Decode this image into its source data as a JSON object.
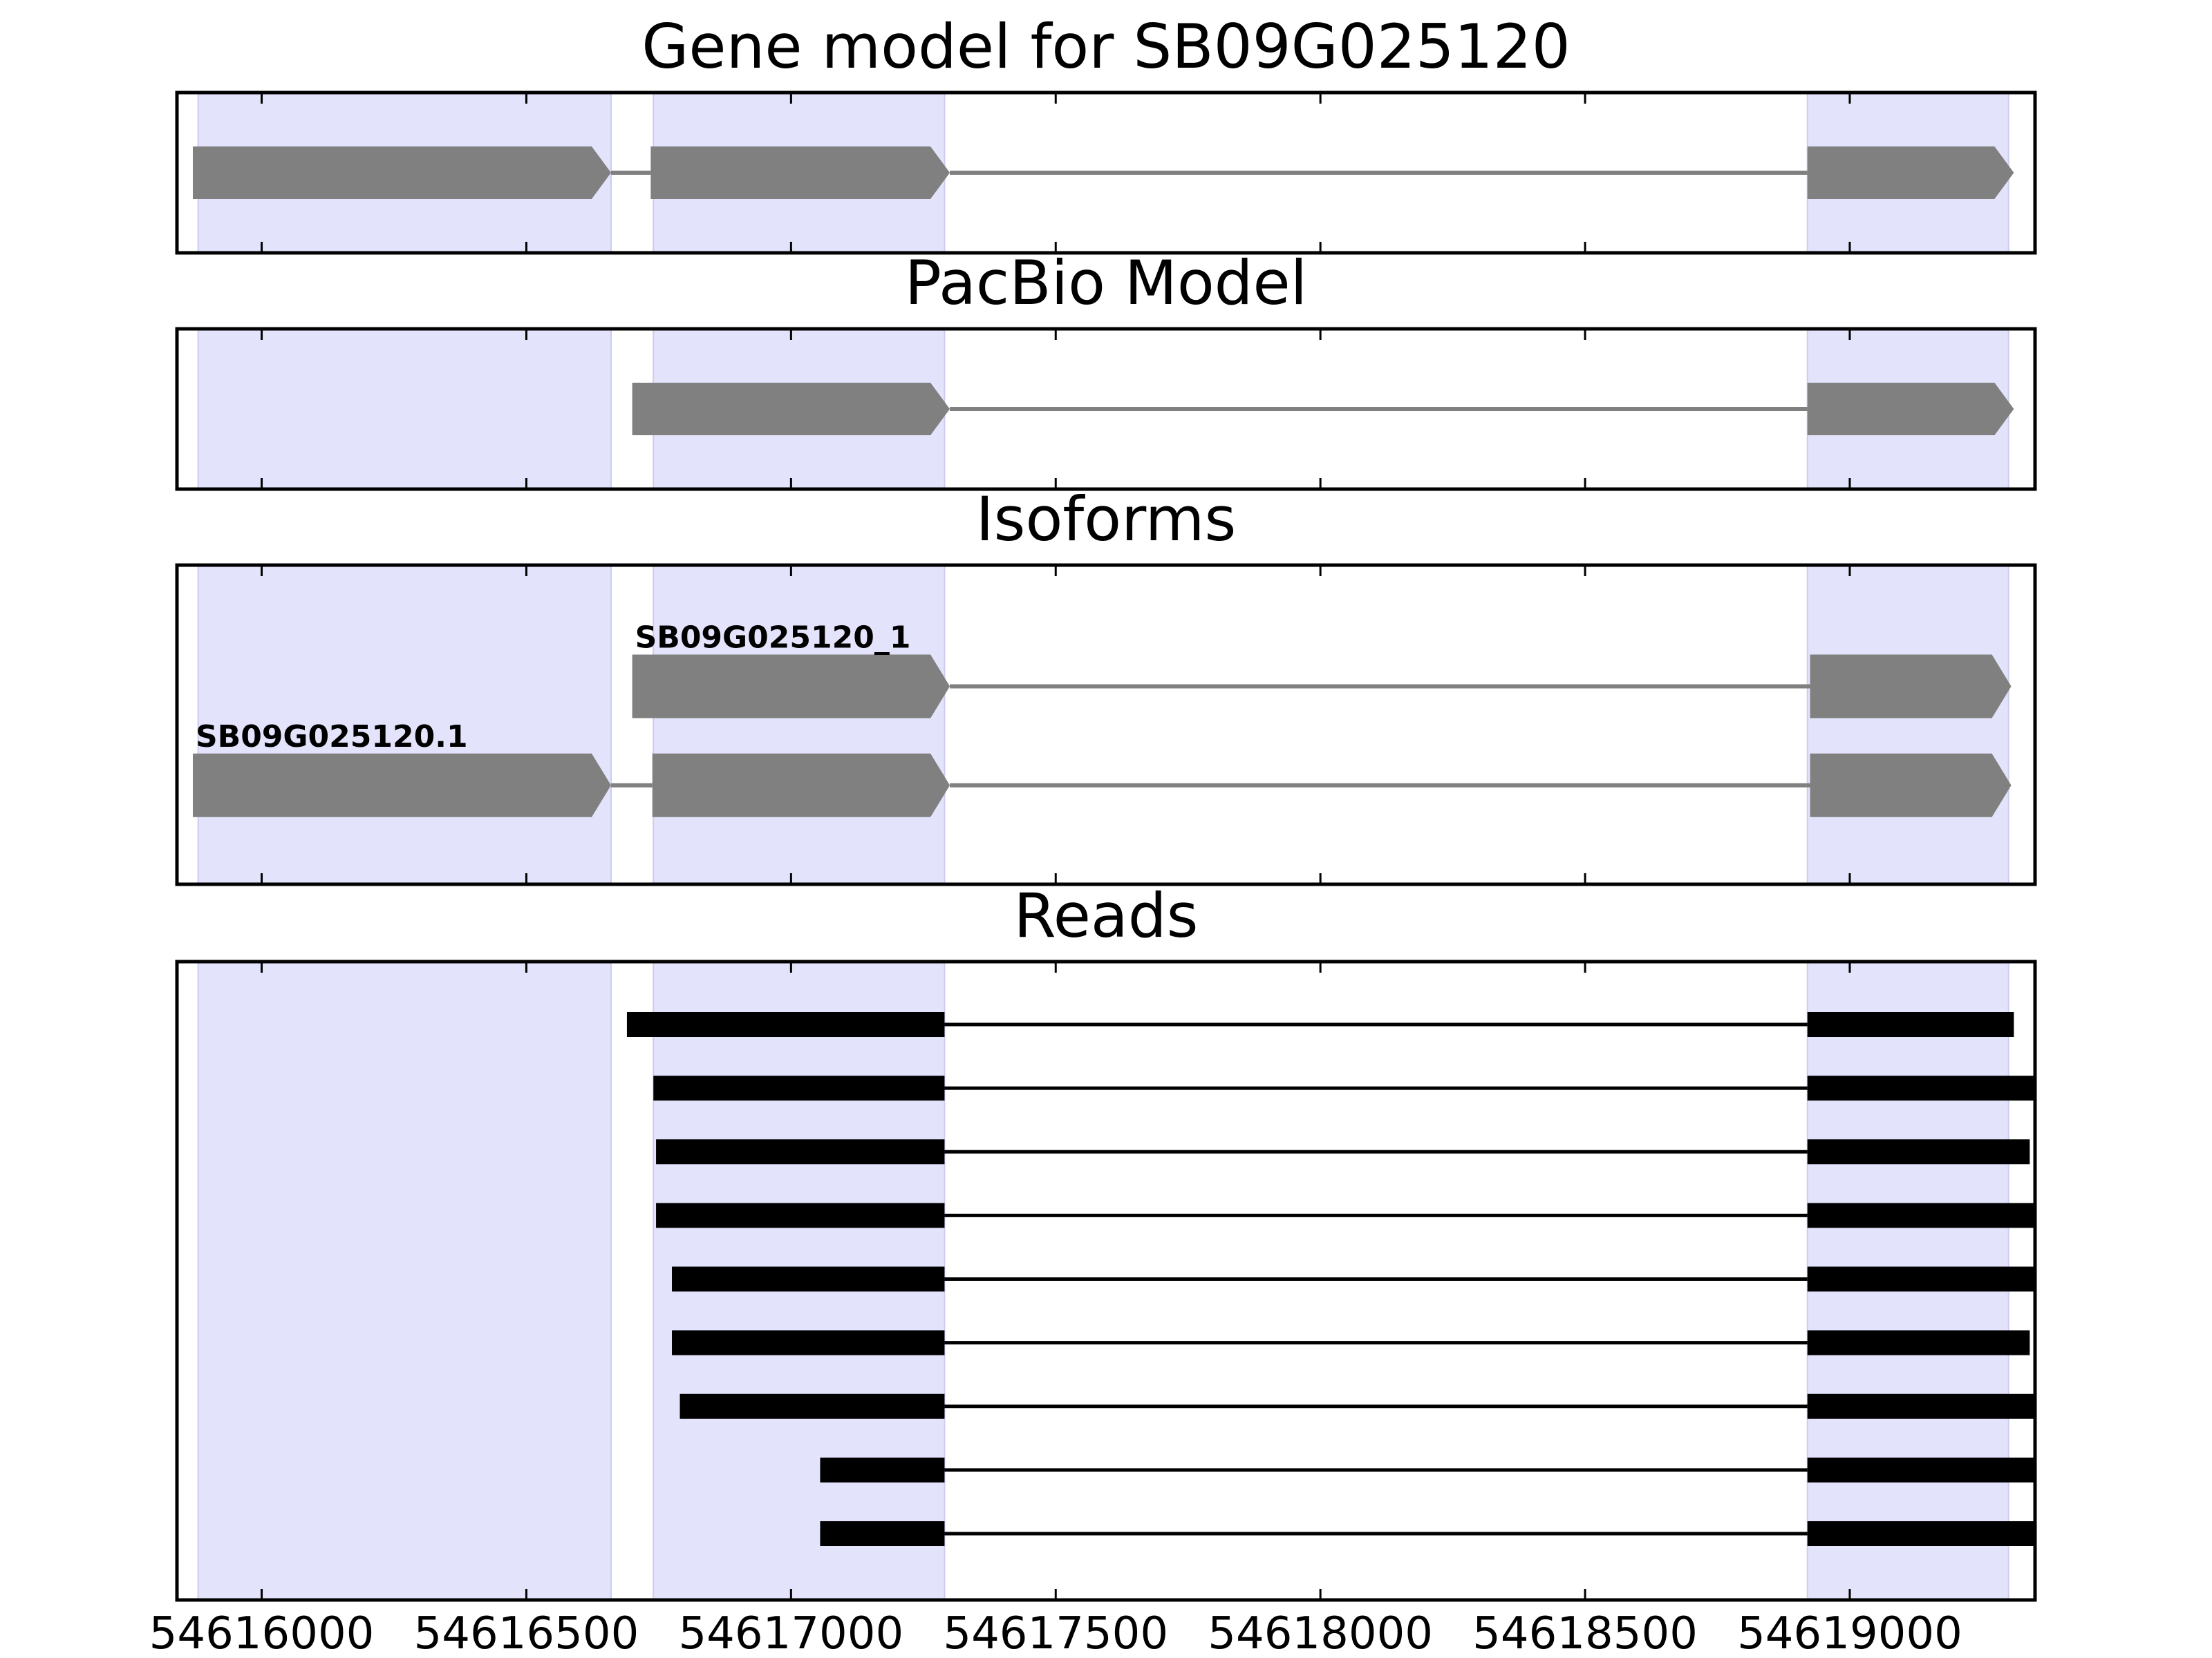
{
  "chart_data": {
    "type": "gene-track",
    "xlim": [
      54615840,
      54619350
    ],
    "x_ticks": [
      54616000,
      54616500,
      54617000,
      54617500,
      54618000,
      54618500,
      54619000
    ],
    "x_tick_labels": [
      "54616000",
      "54616500",
      "54617000",
      "54617500",
      "54618000",
      "54618500",
      "54619000"
    ],
    "grid": false,
    "colors": {
      "shade": "#e3e3fc",
      "shade_edge": "#ccccee",
      "model": "#808080",
      "reads": "#000000",
      "axes": "#000000"
    },
    "exon_shading": [
      [
        54615880,
        54616660
      ],
      [
        54616740,
        54617290
      ],
      [
        54618920,
        54619300
      ]
    ],
    "panels": [
      {
        "id": "gene-model",
        "title": "Gene model for SB09G025120",
        "kind": "model",
        "tracks": [
          {
            "label": "",
            "row": 0.5,
            "exons": [
              [
                54615870,
                54616660
              ],
              [
                54616735,
                54617300
              ],
              [
                54618920,
                54619310
              ]
            ]
          }
        ]
      },
      {
        "id": "pacbio-model",
        "title": "PacBio Model",
        "kind": "model",
        "tracks": [
          {
            "label": "",
            "row": 0.5,
            "exons": [
              [
                54616700,
                54617300
              ],
              [
                54618920,
                54619310
              ]
            ]
          }
        ]
      },
      {
        "id": "isoforms",
        "title": "Isoforms",
        "kind": "model",
        "tracks": [
          {
            "label": "SB09G025120_1",
            "row": 0.62,
            "exons": [
              [
                54616700,
                54617300
              ],
              [
                54618925,
                54619305
              ]
            ]
          },
          {
            "label": "SB09G025120.1",
            "row": 0.31,
            "exons": [
              [
                54615870,
                54616660
              ],
              [
                54616738,
                54617300
              ],
              [
                54618925,
                54619305
              ]
            ]
          }
        ]
      },
      {
        "id": "reads",
        "title": "Reads",
        "kind": "reads",
        "tracks": [
          {
            "row": 9,
            "exons": [
              [
                54616690,
                54617290
              ],
              [
                54618920,
                54619310
              ]
            ]
          },
          {
            "row": 8,
            "exons": [
              [
                54616740,
                54617290
              ],
              [
                54618920,
                54619350
              ]
            ]
          },
          {
            "row": 7,
            "exons": [
              [
                54616745,
                54617290
              ],
              [
                54618920,
                54619340
              ]
            ]
          },
          {
            "row": 6,
            "exons": [
              [
                54616745,
                54617290
              ],
              [
                54618920,
                54619350
              ]
            ]
          },
          {
            "row": 5,
            "exons": [
              [
                54616775,
                54617290
              ],
              [
                54618920,
                54619350
              ]
            ]
          },
          {
            "row": 4,
            "exons": [
              [
                54616775,
                54617290
              ],
              [
                54618920,
                54619340
              ]
            ]
          },
          {
            "row": 3,
            "exons": [
              [
                54616790,
                54617290
              ],
              [
                54618920,
                54619350
              ]
            ]
          },
          {
            "row": 2,
            "exons": [
              [
                54617055,
                54617290
              ],
              [
                54618920,
                54619350
              ]
            ]
          },
          {
            "row": 1,
            "exons": [
              [
                54617055,
                54617290
              ],
              [
                54618920,
                54619350
              ]
            ]
          }
        ]
      }
    ]
  }
}
